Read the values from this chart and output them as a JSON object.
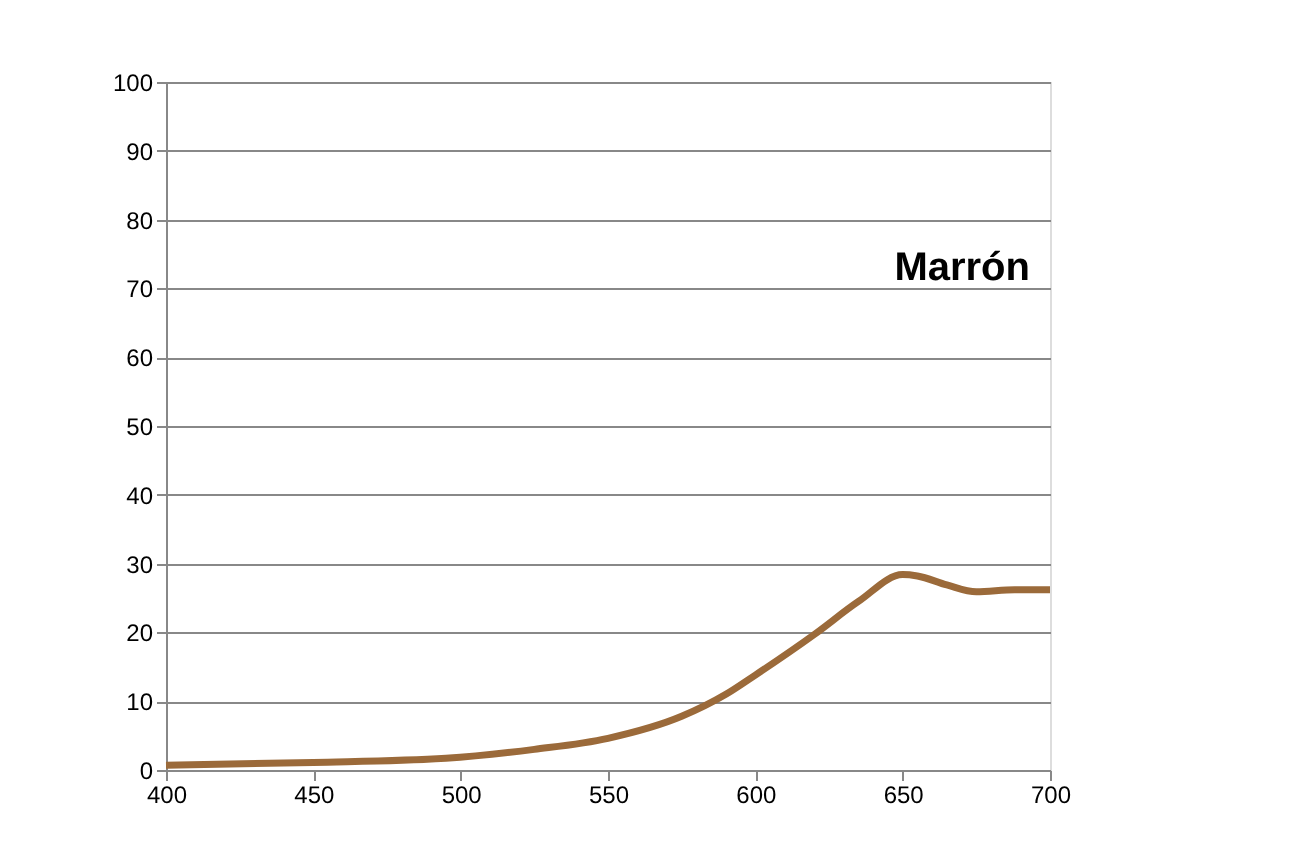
{
  "chart_data": {
    "type": "line",
    "title": "Marrón",
    "x": [
      400,
      450,
      495,
      525,
      550,
      575,
      590,
      600,
      620,
      635,
      650,
      655,
      665,
      675,
      688,
      700
    ],
    "series": [
      {
        "color": "#9b6a3a",
        "values": [
          0.7,
          1.1,
          1.7,
          3,
          4.6,
          7.8,
          11,
          13.8,
          19.7,
          24.5,
          28.4,
          28.2,
          26.9,
          25.9,
          26.2,
          26.2
        ]
      }
    ],
    "xlim": [
      400,
      700
    ],
    "xticks": [
      400,
      450,
      500,
      550,
      600,
      650,
      700
    ],
    "ylim": [
      0,
      100
    ],
    "yticks": [
      0,
      10,
      20,
      30,
      40,
      50,
      60,
      70,
      80,
      90,
      100
    ],
    "grid": "y",
    "marker": "none",
    "line_style": "solid"
  }
}
